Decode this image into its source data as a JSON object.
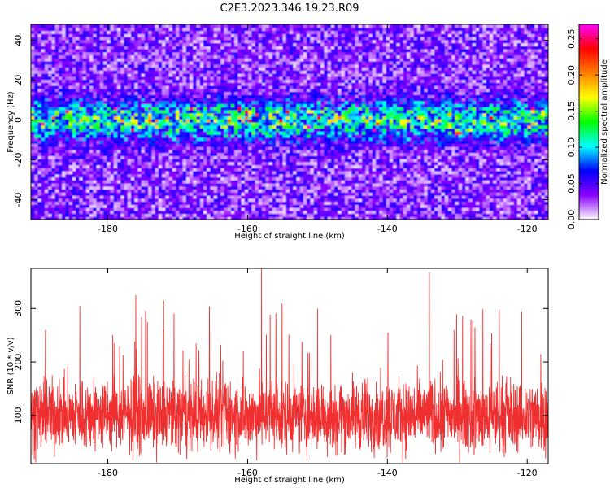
{
  "title": "C2E3.2023.346.19.23.R09",
  "chart_data": [
    {
      "type": "heatmap",
      "xlabel": "Height of straight line (km)",
      "ylabel": "Frequency (Hz)",
      "xlim": [
        -191,
        -117
      ],
      "ylim": [
        -50,
        48
      ],
      "xticks": [
        -180,
        -160,
        -140,
        -120
      ],
      "yticks": [
        -40,
        -20,
        0,
        20,
        40
      ],
      "colorbar": {
        "label": "Normalized spectral amplitude",
        "range": [
          0,
          0.27
        ],
        "ticks": [
          0.0,
          0.05,
          0.1,
          0.15,
          0.2,
          0.25
        ],
        "colormap": [
          "#ffffff",
          "#8a00ff",
          "#0000ff",
          "#00ffff",
          "#00ff00",
          "#ffff00",
          "#ff8000",
          "#ff0000",
          "#ff00ff"
        ]
      },
      "features": {
        "band_center_hz": 0,
        "band_halfwidth_hz": 9,
        "band_peak_amplitude": 0.27,
        "background_amplitude": 0.03
      }
    },
    {
      "type": "line",
      "xlabel": "Height of straight line (km)",
      "ylabel": "SNR (10 * v/v)",
      "xlim": [
        -191,
        -117
      ],
      "ylim": [
        10,
        375
      ],
      "xticks": [
        -180,
        -160,
        -140,
        -120
      ],
      "yticks": [
        100,
        200,
        300
      ],
      "color": "#f03030",
      "series_summary": {
        "baseline": 100,
        "spread": 60,
        "peaks": [
          {
            "x": -158,
            "y": 375
          },
          {
            "x": -134,
            "y": 368
          },
          {
            "x": -176,
            "y": 325
          },
          {
            "x": -172,
            "y": 315
          },
          {
            "x": -184,
            "y": 305
          },
          {
            "x": -150,
            "y": 300
          },
          {
            "x": -124,
            "y": 298
          }
        ]
      }
    }
  ]
}
